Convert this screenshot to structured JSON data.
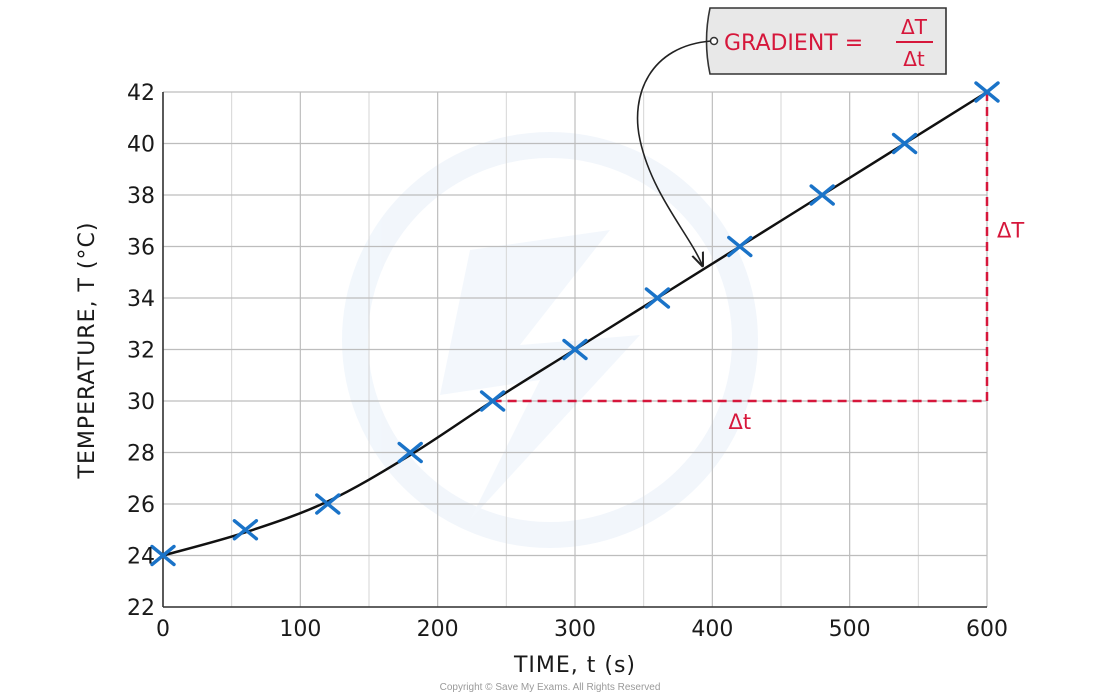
{
  "chart_data": {
    "type": "scatter",
    "xlabel": "TIME, t (s)",
    "ylabel": "TEMPERATURE, T (°C)",
    "xlim": [
      0,
      600
    ],
    "ylim": [
      22,
      42
    ],
    "x_ticks": [
      0,
      100,
      200,
      300,
      400,
      500,
      600
    ],
    "y_ticks": [
      22,
      24,
      26,
      28,
      30,
      32,
      34,
      36,
      38,
      40,
      42
    ],
    "grid": true,
    "marker": "cross",
    "series": [
      {
        "x": [
          0,
          60,
          120,
          180,
          240,
          300,
          360,
          420,
          480,
          540,
          600
        ],
        "y": [
          24,
          25,
          26,
          28,
          30,
          32,
          34,
          36,
          38,
          40,
          42
        ],
        "color": "#1a73c8"
      }
    ],
    "best_fit_curve": {
      "x": [
        0,
        60,
        120,
        180,
        240,
        300,
        360,
        420,
        480,
        540,
        600
      ],
      "y": [
        24,
        24.9,
        26.1,
        27.9,
        30,
        32,
        34,
        36,
        38,
        40,
        42
      ],
      "color": "#111111"
    },
    "gradient_triangle": {
      "from": [
        240,
        30
      ],
      "corner": [
        600,
        30
      ],
      "to": [
        600,
        42
      ],
      "color": "#d6173b",
      "dx_label": "Δt",
      "dy_label": "ΔT"
    },
    "annotation": {
      "text": "GRADIENT =",
      "numerator": "ΔT",
      "denominator": "Δt",
      "points_to": [
        395,
        35.1
      ]
    }
  },
  "copyright": "Copyright © Save My Exams. All Rights Reserved"
}
